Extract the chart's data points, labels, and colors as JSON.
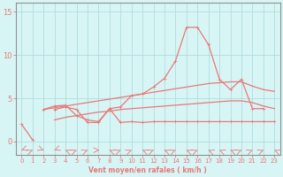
{
  "x": [
    0,
    1,
    2,
    3,
    4,
    5,
    6,
    7,
    8,
    9,
    10,
    11,
    12,
    13,
    14,
    15,
    16,
    17,
    18,
    19,
    20,
    21,
    22,
    23
  ],
  "line_peak": [
    null,
    null,
    3.7,
    4.1,
    4.2,
    3.0,
    2.5,
    2.3,
    3.8,
    4.0,
    5.3,
    5.5,
    6.3,
    7.3,
    9.3,
    13.2,
    13.2,
    11.2,
    7.2,
    6.0,
    7.2,
    3.8,
    3.8,
    null
  ],
  "line_low": [
    2.0,
    0.2,
    null,
    3.7,
    4.0,
    3.7,
    2.2,
    2.2,
    3.8,
    2.2,
    2.3,
    2.2,
    2.3,
    2.3,
    2.3,
    2.3,
    2.3,
    2.3,
    2.3,
    2.3,
    2.3,
    2.3,
    2.3,
    2.3
  ],
  "smooth_upper": [
    null,
    null,
    3.7,
    3.9,
    4.1,
    4.3,
    4.5,
    4.7,
    4.9,
    5.1,
    5.3,
    5.5,
    5.7,
    5.9,
    6.1,
    6.3,
    6.5,
    6.7,
    6.8,
    6.9,
    6.9,
    6.4,
    6.0,
    5.8
  ],
  "smooth_lower": [
    null,
    null,
    null,
    2.5,
    2.8,
    3.0,
    3.2,
    3.4,
    3.5,
    3.7,
    3.8,
    3.9,
    4.0,
    4.1,
    4.2,
    4.3,
    4.4,
    4.5,
    4.6,
    4.7,
    4.7,
    4.5,
    4.1,
    3.8
  ],
  "bg_color": "#d8f5f5",
  "line_color": "#e87878",
  "grid_color": "#a8d8d8",
  "xlabel": "Vent moyen/en rafales ( km/h )",
  "xlim": [
    -0.5,
    23.5
  ],
  "ylim": [
    -1.5,
    16
  ],
  "yticks": [
    0,
    5,
    10,
    15
  ],
  "xticks": [
    0,
    1,
    2,
    3,
    4,
    5,
    6,
    7,
    8,
    9,
    10,
    11,
    12,
    13,
    14,
    15,
    16,
    17,
    18,
    19,
    20,
    21,
    22,
    23
  ]
}
